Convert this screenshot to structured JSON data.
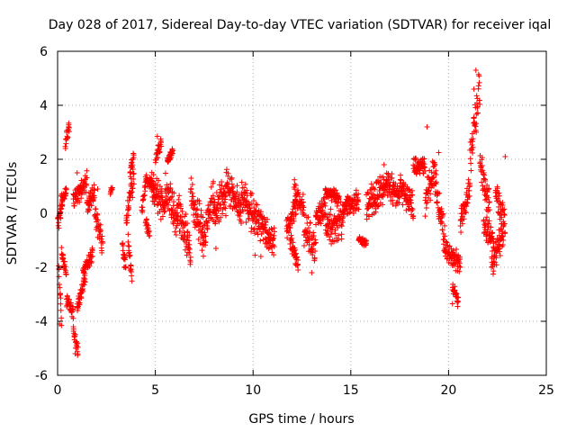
{
  "chart_data": {
    "type": "scatter",
    "title": "Day 028 of 2017, Sidereal Day-to-day VTEC variation (SDTVAR) for receiver iqal",
    "xlabel": "GPS time / hours",
    "ylabel": "SDTVAR / TECUs",
    "xlim": [
      0,
      25
    ],
    "ylim": [
      -6,
      6
    ],
    "xticks": [
      0,
      5,
      10,
      15,
      20,
      25
    ],
    "yticks": [
      -6,
      -4,
      -2,
      0,
      2,
      4,
      6
    ],
    "xtick_labels": [
      "0",
      "5",
      "10",
      "15",
      "20",
      "25"
    ],
    "ytick_labels": [
      "-6",
      "-4",
      "-2",
      "0",
      "2",
      "4",
      "6"
    ],
    "grid": true,
    "marker": "+",
    "color": "#ff0000",
    "series": [
      {
        "name": "SDTVAR",
        "segments": [
          {
            "t0": 0.0,
            "t1": 0.25,
            "v0": -0.5,
            "v1": 0.6,
            "spread": 0.5
          },
          {
            "t0": 0.05,
            "t1": 0.2,
            "v0": -2.0,
            "v1": -3.9,
            "spread": 0.3
          },
          {
            "t0": 0.2,
            "t1": 0.45,
            "v0": -1.5,
            "v1": -2.2,
            "spread": 0.3
          },
          {
            "t0": 0.4,
            "t1": 0.6,
            "v0": 2.6,
            "v1": 3.3,
            "spread": 0.3
          },
          {
            "t0": 0.2,
            "t1": 0.45,
            "v0": 0.3,
            "v1": 0.9,
            "spread": 0.3
          },
          {
            "t0": 0.45,
            "t1": 0.8,
            "v0": -3.2,
            "v1": -3.7,
            "spread": 0.3
          },
          {
            "t0": 0.8,
            "t1": 1.05,
            "v0": -4.3,
            "v1": -5.1,
            "spread": 0.3
          },
          {
            "t0": 1.0,
            "t1": 1.4,
            "v0": -3.5,
            "v1": -2.4,
            "spread": 0.3
          },
          {
            "t0": 1.3,
            "t1": 1.8,
            "v0": -2.2,
            "v1": -1.5,
            "spread": 0.3
          },
          {
            "t0": 0.8,
            "t1": 1.5,
            "v0": 0.5,
            "v1": 1.2,
            "spread": 0.5
          },
          {
            "t0": 1.5,
            "t1": 1.9,
            "v0": 0.3,
            "v1": 0.8,
            "spread": 0.5
          },
          {
            "t0": 1.9,
            "t1": 2.3,
            "v0": 0.0,
            "v1": -1.2,
            "spread": 0.6
          },
          {
            "t0": 2.7,
            "t1": 2.8,
            "v0": 0.7,
            "v1": 1.0,
            "spread": 0.2
          },
          {
            "t0": 3.3,
            "t1": 3.5,
            "v0": -1.2,
            "v1": -2.0,
            "spread": 0.3
          },
          {
            "t0": 3.5,
            "t1": 3.9,
            "v0": -0.2,
            "v1": 1.3,
            "spread": 0.8
          },
          {
            "t0": 3.7,
            "t1": 3.9,
            "v0": 1.5,
            "v1": 2.2,
            "spread": 0.3
          },
          {
            "t0": 3.6,
            "t1": 3.8,
            "v0": -1.0,
            "v1": -2.3,
            "spread": 0.4
          },
          {
            "t0": 4.3,
            "t1": 4.5,
            "v0": 0.0,
            "v1": 1.0,
            "spread": 0.4
          },
          {
            "t0": 4.5,
            "t1": 4.9,
            "v0": 1.3,
            "v1": 1.0,
            "spread": 0.3
          },
          {
            "t0": 4.5,
            "t1": 4.7,
            "v0": -0.3,
            "v1": -0.8,
            "spread": 0.3
          },
          {
            "t0": 4.8,
            "t1": 5.5,
            "v0": 1.0,
            "v1": 0.2,
            "spread": 0.8
          },
          {
            "t0": 5.0,
            "t1": 5.3,
            "v0": 2.0,
            "v1": 2.7,
            "spread": 0.3
          },
          {
            "t0": 5.5,
            "t1": 6.1,
            "v0": 1.0,
            "v1": -0.3,
            "spread": 0.9
          },
          {
            "t0": 5.6,
            "t1": 5.9,
            "v0": 1.9,
            "v1": 2.3,
            "spread": 0.2
          },
          {
            "t0": 6.1,
            "t1": 6.8,
            "v0": 0.2,
            "v1": -1.3,
            "spread": 1.0
          },
          {
            "t0": 6.8,
            "t1": 7.5,
            "v0": 0.8,
            "v1": -1.0,
            "spread": 1.0
          },
          {
            "t0": 7.5,
            "t1": 8.0,
            "v0": -0.8,
            "v1": 0.7,
            "spread": 0.9
          },
          {
            "t0": 8.0,
            "t1": 8.6,
            "v0": 0.2,
            "v1": 0.6,
            "spread": 1.0
          },
          {
            "t0": 8.6,
            "t1": 9.4,
            "v0": 1.1,
            "v1": 0.2,
            "spread": 0.8
          },
          {
            "t0": 9.4,
            "t1": 10.4,
            "v0": 0.6,
            "v1": -0.5,
            "spread": 0.9
          },
          {
            "t0": 10.4,
            "t1": 11.1,
            "v0": -0.4,
            "v1": -1.1,
            "spread": 0.7
          },
          {
            "t0": 11.7,
            "t1": 12.2,
            "v0": -0.6,
            "v1": 0.3,
            "spread": 0.5
          },
          {
            "t0": 12.1,
            "t1": 12.6,
            "v0": 0.8,
            "v1": 0.2,
            "spread": 0.6
          },
          {
            "t0": 11.9,
            "t1": 12.3,
            "v0": -1.0,
            "v1": -1.9,
            "spread": 0.4
          },
          {
            "t0": 12.6,
            "t1": 13.2,
            "v0": -0.5,
            "v1": -1.3,
            "spread": 0.9
          },
          {
            "t0": 13.2,
            "t1": 13.7,
            "v0": -0.2,
            "v1": 0.3,
            "spread": 0.6
          },
          {
            "t0": 13.7,
            "t1": 14.4,
            "v0": 0.8,
            "v1": 0.6,
            "spread": 0.3
          },
          {
            "t0": 13.7,
            "t1": 14.6,
            "v0": -0.5,
            "v1": -0.3,
            "spread": 0.9
          },
          {
            "t0": 14.6,
            "t1": 15.4,
            "v0": 0.2,
            "v1": 0.5,
            "spread": 0.5
          },
          {
            "t0": 15.4,
            "t1": 15.8,
            "v0": -1.0,
            "v1": -1.1,
            "spread": 0.2
          },
          {
            "t0": 15.8,
            "t1": 16.8,
            "v0": 0.3,
            "v1": 1.0,
            "spread": 0.8
          },
          {
            "t0": 16.8,
            "t1": 17.5,
            "v0": 1.2,
            "v1": 0.6,
            "spread": 0.7
          },
          {
            "t0": 17.5,
            "t1": 18.2,
            "v0": 1.0,
            "v1": 0.3,
            "spread": 0.7
          },
          {
            "t0": 18.2,
            "t1": 18.8,
            "v0": 1.7,
            "v1": 1.8,
            "spread": 0.4
          },
          {
            "t0": 18.8,
            "t1": 19.3,
            "v0": 0.5,
            "v1": 1.6,
            "spread": 0.9
          },
          {
            "t0": 19.3,
            "t1": 19.8,
            "v0": 1.3,
            "v1": -1.0,
            "spread": 0.8
          },
          {
            "t0": 19.8,
            "t1": 20.6,
            "v0": -1.3,
            "v1": -1.9,
            "spread": 0.5
          },
          {
            "t0": 20.2,
            "t1": 20.5,
            "v0": -2.7,
            "v1": -3.3,
            "spread": 0.3
          },
          {
            "t0": 20.6,
            "t1": 21.1,
            "v0": -0.4,
            "v1": 1.0,
            "spread": 0.6
          },
          {
            "t0": 21.1,
            "t1": 21.6,
            "v0": 2.0,
            "v1": 4.7,
            "spread": 0.9
          },
          {
            "t0": 21.6,
            "t1": 22.1,
            "v0": 1.8,
            "v1": 0.3,
            "spread": 0.8
          },
          {
            "t0": 21.8,
            "t1": 22.3,
            "v0": -0.4,
            "v1": -1.0,
            "spread": 0.6
          },
          {
            "t0": 22.2,
            "t1": 22.8,
            "v0": -1.9,
            "v1": -0.8,
            "spread": 0.7
          },
          {
            "t0": 22.4,
            "t1": 22.9,
            "v0": 0.7,
            "v1": -0.4,
            "spread": 0.6
          }
        ],
        "outliers": [
          {
            "x": 0.1,
            "y": -4.1
          },
          {
            "x": 0.9,
            "y": -5.2
          },
          {
            "x": 1.0,
            "y": 1.5
          },
          {
            "x": 2.05,
            "y": 0.9
          },
          {
            "x": 3.4,
            "y": -2.0
          },
          {
            "x": 5.1,
            "y": 2.85
          },
          {
            "x": 6.8,
            "y": -1.8
          },
          {
            "x": 8.1,
            "y": -1.3
          },
          {
            "x": 10.1,
            "y": -1.55
          },
          {
            "x": 10.4,
            "y": -1.6
          },
          {
            "x": 12.3,
            "y": -2.1
          },
          {
            "x": 13.0,
            "y": -2.2
          },
          {
            "x": 16.7,
            "y": 1.8
          },
          {
            "x": 18.9,
            "y": 3.2
          },
          {
            "x": 19.5,
            "y": 2.25
          },
          {
            "x": 20.2,
            "y": -3.35
          },
          {
            "x": 21.4,
            "y": 5.3
          },
          {
            "x": 21.3,
            "y": 4.6
          },
          {
            "x": 22.9,
            "y": 2.1
          }
        ]
      }
    ]
  }
}
